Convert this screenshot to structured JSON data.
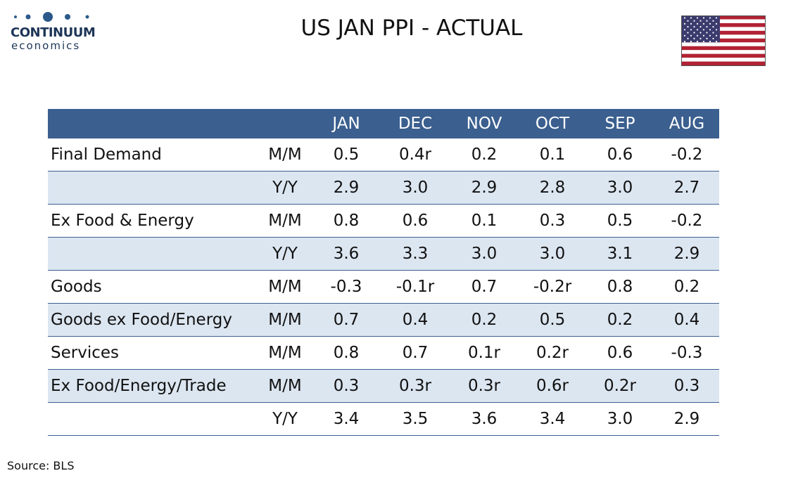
{
  "header": {
    "logo": {
      "name": "CONTINUUM",
      "tagline": "economics"
    },
    "title": "US JAN PPI - ACTUAL"
  },
  "table": {
    "columns": [
      "JAN",
      "DEC",
      "NOV",
      "OCT",
      "SEP",
      "AUG"
    ],
    "rows": [
      {
        "label": "Final Demand",
        "measure": "M/M",
        "cells": [
          "0.5",
          "0.4r",
          "0.2",
          "0.1",
          "0.6",
          "-0.2"
        ]
      },
      {
        "label": null,
        "measure": "Y/Y",
        "cells": [
          "2.9",
          "3.0",
          "2.9",
          "2.8",
          "3.0",
          "2.7"
        ]
      },
      {
        "label": "Ex Food & Energy",
        "measure": "M/M",
        "cells": [
          "0.8",
          "0.6",
          "0.1",
          "0.3",
          "0.5",
          "-0.2"
        ]
      },
      {
        "label": null,
        "measure": "Y/Y",
        "cells": [
          "3.6",
          "3.3",
          "3.0",
          "3.0",
          "3.1",
          "2.9"
        ]
      },
      {
        "label": "Goods",
        "measure": "M/M",
        "cells": [
          "-0.3",
          "-0.1r",
          "0.7",
          "-0.2r",
          "0.8",
          "0.2"
        ]
      },
      {
        "label": "Goods ex Food/Energy",
        "measure": "M/M",
        "cells": [
          "0.7",
          "0.4",
          "0.2",
          "0.5",
          "0.2",
          "0.4"
        ]
      },
      {
        "label": "Services",
        "measure": "M/M",
        "cells": [
          "0.8",
          "0.7",
          "0.1r",
          "0.2r",
          "0.6",
          "-0.3"
        ]
      },
      {
        "label": "Ex Food/Energy/Trade",
        "measure": "M/M",
        "cells": [
          "0.3",
          "0.3r",
          "0.3r",
          "0.6r",
          "0.2r",
          "0.3"
        ]
      },
      {
        "label": null,
        "measure": "Y/Y",
        "cells": [
          "3.4",
          "3.5",
          "3.6",
          "3.4",
          "3.0",
          "2.9"
        ]
      }
    ]
  },
  "footer": {
    "source": "Source: BLS"
  }
}
